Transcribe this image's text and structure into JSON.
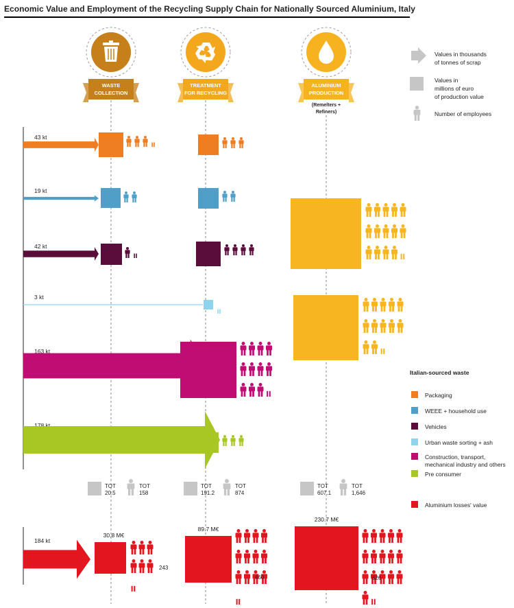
{
  "title": "Economic Value and Employment of the Recycling Supply Chain for Nationally Sourced Aluminium, Italy",
  "stages": [
    {
      "label_lines": [
        "WASTE",
        "COLLECTION"
      ],
      "icon": "trash-bin-icon",
      "sub_lines": []
    },
    {
      "label_lines": [
        "TREATMENT",
        "FOR RECYCLING"
      ],
      "icon": "recycle-icon",
      "sub_lines": []
    },
    {
      "label_lines": [
        "ALUMINIUM",
        "PRODUCTION"
      ],
      "icon": "droplet-icon",
      "sub_lines": [
        "(Remelters +",
        "Refiners)"
      ]
    }
  ],
  "key": [
    {
      "icon": "arrow-icon",
      "lines": [
        "Values in thousands",
        "of tonnes of scrap"
      ]
    },
    {
      "icon": "square-icon",
      "lines": [
        "Values in",
        "millions of euro",
        "of production value"
      ]
    },
    {
      "icon": "person-icon",
      "lines": [
        "Number of employees"
      ]
    }
  ],
  "legend": {
    "title": "Italian-sourced waste",
    "items": [
      {
        "color": "#ef7d22",
        "lines": [
          "Packaging"
        ]
      },
      {
        "color": "#4f9fc9",
        "lines": [
          "WEEE + household use"
        ]
      },
      {
        "color": "#5a0d3a",
        "lines": [
          "Vehicles"
        ]
      },
      {
        "color": "#8fd3ec",
        "lines": [
          "Urban waste sorting + ash"
        ]
      },
      {
        "color": "#c00d74",
        "lines": [
          "Construction, transport,",
          "mechanical industry and others"
        ]
      },
      {
        "color": "#a8c723",
        "lines": [
          "Pre consumer"
        ]
      }
    ],
    "loss_item": {
      "color": "#e3161f",
      "lines": [
        "Aluminium losses' value"
      ]
    }
  },
  "colors": {
    "stage_collection": "#c57f1b",
    "stage_treatment": "#f2a71c",
    "stage_production": "#f6b21f",
    "icon_grey": "#c6c6c6",
    "production_yellow": "#f7b51f",
    "axis": "#555555"
  },
  "waste_streams": [
    {
      "label": "43 kt",
      "tonnes": 43,
      "color": "#ef7d22",
      "collection": {
        "employees_people": 3.5
      },
      "treatment": {
        "employees_people": 3
      }
    },
    {
      "label": "19 kt",
      "tonnes": 19,
      "color": "#4f9fc9",
      "collection": {
        "employees_people": 2
      },
      "treatment": {
        "employees_people": 2
      }
    },
    {
      "label": "42 kt",
      "tonnes": 42,
      "color": "#5a0d3a",
      "collection": {
        "employees_people": 1.4
      },
      "treatment": {
        "employees_people": 4
      }
    },
    {
      "label": "3 kt",
      "tonnes": 3,
      "color": "#8fd3ec",
      "collection": {
        "employees_people": 0
      },
      "treatment": {
        "employees_people": 0.3
      }
    },
    {
      "label": "163 kt",
      "tonnes": 163,
      "color": "#c00d74",
      "collection": {
        "employees_people": 0
      },
      "treatment": {
        "employees_people": 11.5
      }
    },
    {
      "label": "178 kt",
      "tonnes": 178,
      "color": "#a8c723",
      "collection": {
        "employees_people": 0
      },
      "treatment": {
        "employees_people": 3
      }
    }
  ],
  "production_blocks": [
    {
      "color": "#f7b51f",
      "employees_people": 14.3
    },
    {
      "color": "#f7b51f",
      "employees_people": 12.5
    }
  ],
  "totals": [
    {
      "tot_label": "TOT",
      "value": "20.5",
      "emp_label": "TOT",
      "employees": "158"
    },
    {
      "tot_label": "TOT",
      "value": "191.2",
      "emp_label": "TOT",
      "employees": "874"
    },
    {
      "tot_label": "TOT",
      "value": "607.1",
      "emp_label": "TOT",
      "employees": "1,646"
    }
  ],
  "losses": {
    "label": "184 kt",
    "tonnes": 184,
    "color": "#e3161f",
    "stages": [
      {
        "value_label": "30.8 M€",
        "value": 30.8,
        "employees": "243",
        "employees_people": 6.4
      },
      {
        "value_label": "89.7 M€",
        "value": 89.7,
        "employees": "460",
        "employees_people": 12.4
      },
      {
        "value_label": "230.7 M€",
        "value": 230.7,
        "employees": "626",
        "employees_people": 16.3
      }
    ]
  }
}
